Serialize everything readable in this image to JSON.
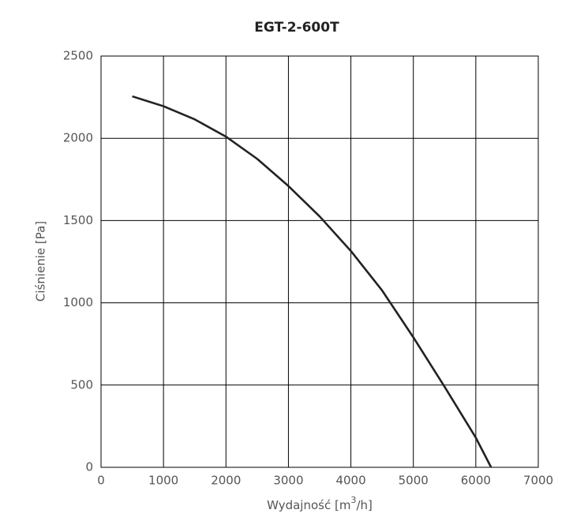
{
  "chart_data": {
    "type": "line",
    "title": "EGT-2-600T",
    "x_label": {
      "before": "Wydajność [m",
      "sup": "3",
      "after": "/h]"
    },
    "y_label": "Ciśnienie [Pa]",
    "x": [
      500,
      1000,
      1500,
      2000,
      2500,
      3000,
      3500,
      4000,
      4500,
      5000,
      5500,
      6000,
      6245
    ],
    "values": [
      2255,
      2195,
      2115,
      2010,
      1875,
      1710,
      1525,
      1315,
      1075,
      790,
      490,
      180,
      0
    ],
    "color": "#222222",
    "xlim": [
      0,
      7000
    ],
    "xticks": [
      0,
      1000,
      2000,
      3000,
      4000,
      5000,
      6000,
      7000
    ],
    "ylim": [
      0,
      2500
    ],
    "yticks": [
      0,
      500,
      1000,
      1500,
      2000,
      2500
    ],
    "grid": true
  }
}
